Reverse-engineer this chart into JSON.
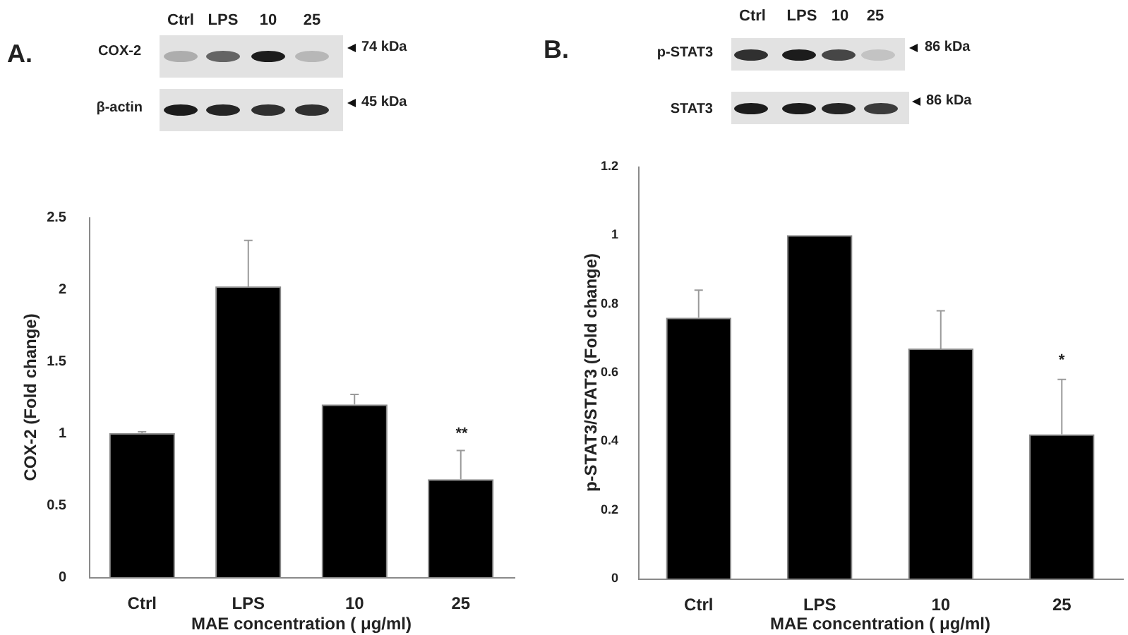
{
  "chart_data": [
    {
      "type": "bar",
      "title": "A.",
      "categories": [
        "Ctrl",
        "LPS",
        "10",
        "25"
      ],
      "values": [
        1,
        2.02,
        1.2,
        0.68
      ],
      "errors": [
        [
          1,
          1.01
        ],
        [
          2.02,
          2.34
        ],
        [
          1.2,
          1.27
        ],
        [
          0.68,
          0.88
        ]
      ],
      "color": "#000000",
      "xlabel": "MAE concentration ( μg/ml)",
      "ylabel": "COX-2 (Fold change)",
      "ylim": [
        0,
        2.5
      ],
      "yticks": [
        0,
        0.5,
        1,
        1.5,
        2,
        2.5
      ],
      "annotations": [
        "Ctrl",
        "LPS",
        "10",
        "25",
        "COX-2",
        "74 kDa",
        "β-actin",
        "45 kDa",
        "**"
      ]
    },
    {
      "type": "bar",
      "title": "B.",
      "categories": [
        "Ctrl",
        "LPS",
        "10",
        "25"
      ],
      "values": [
        0.76,
        1,
        0.67,
        0.42
      ],
      "errors": [
        [
          0.76,
          0.84
        ],
        null,
        [
          0.67,
          0.78
        ],
        [
          0.42,
          0.58
        ]
      ],
      "color": "#000000",
      "xlabel": "MAE concentration ( μg/ml)",
      "ylabel": "p-STAT3/STAT3 (Fold change)",
      "ylim": [
        0,
        1.2
      ],
      "yticks": [
        0,
        0.2,
        0.4,
        0.6,
        0.8,
        1,
        1.2
      ],
      "annotations": [
        "Ctrl",
        "LPS",
        "10",
        "25",
        "p-STAT3",
        "86 kDa",
        "STAT3",
        "86 kDa",
        "*"
      ]
    }
  ]
}
